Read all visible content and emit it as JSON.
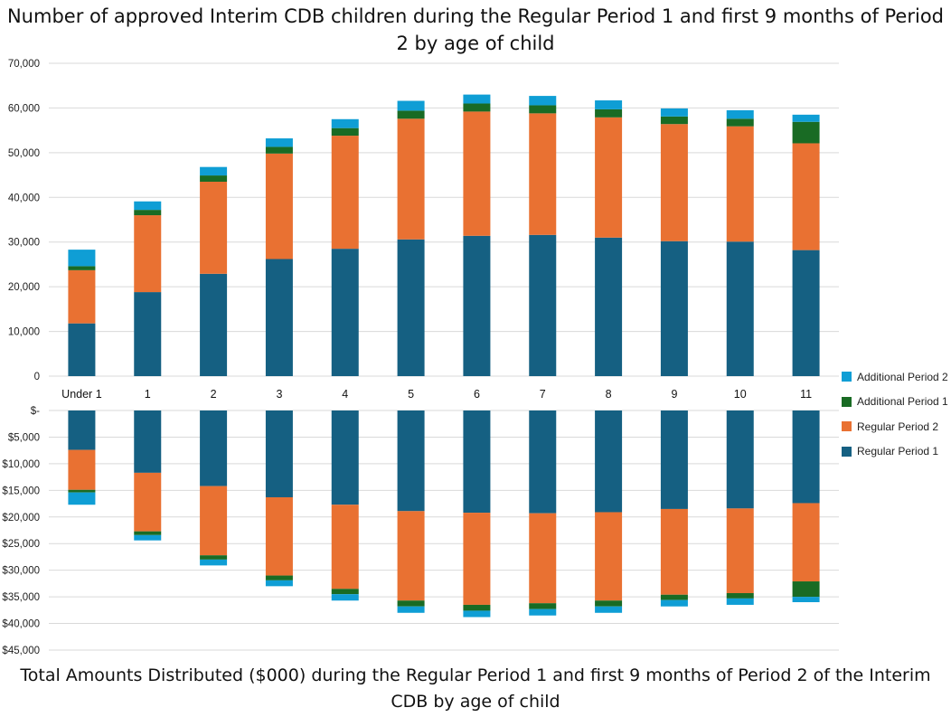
{
  "top_title": "Number of approved Interim CDB children during the Regular Period 1 and first 9 months of Period 2 by age of child",
  "bottom_title": "Total Amounts Distributed ($000) during the Regular Period 1 and first 9 months of Period 2 of the Interim CDB by age of child",
  "colors": {
    "regular_period_1": "#156082",
    "regular_period_2": "#E97132",
    "additional_period_1": "#196B24",
    "additional_period_2": "#0F9ED5",
    "gridline": "#D9D9D9",
    "axis_text": "#222222"
  },
  "legend": [
    {
      "label": "Additional Period 2",
      "color": "#0F9ED5"
    },
    {
      "label": "Additional Period 1",
      "color": "#196B24"
    },
    {
      "label": "Regular Period 2",
      "color": "#E97132"
    },
    {
      "label": "Regular Period 1",
      "color": "#156082"
    }
  ],
  "chart_data": [
    {
      "type": "bar",
      "stacked": true,
      "title": "Number of approved Interim CDB children during the Regular Period 1 and first 9 months of Period 2 by age of child",
      "categories": [
        "Under 1",
        "1",
        "2",
        "3",
        "4",
        "5",
        "6",
        "7",
        "8",
        "9",
        "10",
        "11"
      ],
      "ylim": [
        0,
        70000
      ],
      "yticks": [
        0,
        10000,
        20000,
        30000,
        40000,
        50000,
        60000,
        70000
      ],
      "ytick_labels": [
        "0",
        "10,000",
        "20,000",
        "30,000",
        "40,000",
        "50,000",
        "60,000",
        "70,000"
      ],
      "grid": true,
      "series": [
        {
          "name": "Regular Period 1",
          "values": [
            11800,
            18800,
            22900,
            26200,
            28500,
            30600,
            31400,
            31600,
            31000,
            30200,
            30100,
            28200
          ]
        },
        {
          "name": "Regular Period 2",
          "values": [
            11900,
            17200,
            20600,
            23600,
            25300,
            27000,
            27800,
            27200,
            26900,
            26200,
            25800,
            23900
          ]
        },
        {
          "name": "Additional Period 1",
          "values": [
            900,
            1200,
            1400,
            1500,
            1700,
            1800,
            1800,
            1800,
            1800,
            1700,
            1700,
            4800
          ]
        },
        {
          "name": "Additional Period 2",
          "values": [
            3700,
            1900,
            1900,
            1900,
            2000,
            2200,
            2000,
            2100,
            2000,
            1800,
            1900,
            1600
          ]
        }
      ]
    },
    {
      "type": "bar",
      "stacked": true,
      "inverted_axis": true,
      "title": "Total Amounts Distributed ($000) during the Regular Period 1 and first 9 months of Period 2 of the Interim CDB by age of child",
      "categories": [
        "Under 1",
        "1",
        "2",
        "3",
        "4",
        "5",
        "6",
        "7",
        "8",
        "9",
        "10",
        "11"
      ],
      "ylim": [
        0,
        45000
      ],
      "yticks": [
        0,
        5000,
        10000,
        15000,
        20000,
        25000,
        30000,
        35000,
        40000,
        45000
      ],
      "ytick_labels": [
        "$-",
        "$5,000",
        "$10,000",
        "$15,000",
        "$20,000",
        "$25,000",
        "$30,000",
        "$35,000",
        "$40,000",
        "$45,000"
      ],
      "grid": true,
      "series": [
        {
          "name": "Regular Period 1",
          "values": [
            7400,
            11700,
            14200,
            16300,
            17700,
            18900,
            19200,
            19300,
            19100,
            18500,
            18400,
            17400
          ]
        },
        {
          "name": "Regular Period 2",
          "values": [
            7500,
            11000,
            13000,
            14700,
            15800,
            16800,
            17300,
            16900,
            16600,
            16100,
            15900,
            14700
          ]
        },
        {
          "name": "Additional Period 1",
          "values": [
            500,
            700,
            800,
            900,
            1000,
            1100,
            1100,
            1100,
            1100,
            1000,
            1000,
            2900
          ]
        },
        {
          "name": "Additional Period 2",
          "values": [
            2300,
            1000,
            1100,
            1100,
            1200,
            1200,
            1200,
            1200,
            1200,
            1200,
            1200,
            1000
          ]
        }
      ]
    }
  ]
}
